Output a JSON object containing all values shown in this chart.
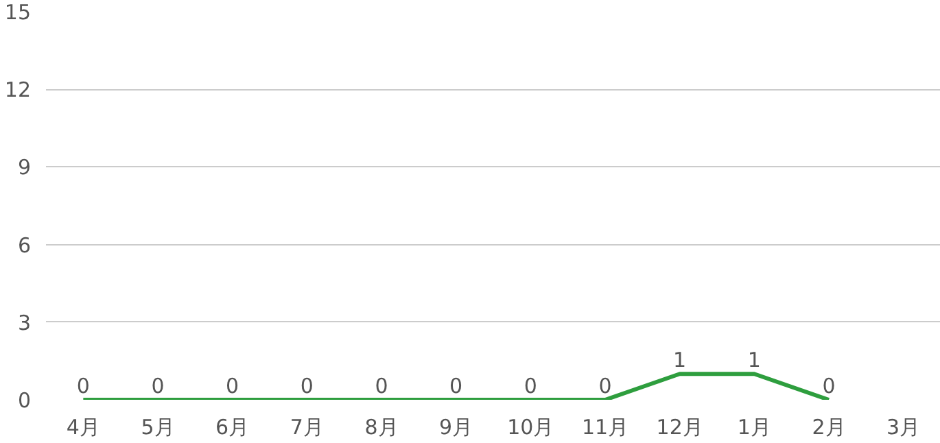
{
  "chart_data": {
    "type": "line",
    "categories": [
      "4月",
      "5月",
      "6月",
      "7月",
      "8月",
      "9月",
      "10月",
      "11月",
      "12月",
      "1月",
      "2月",
      "3月"
    ],
    "series": [
      {
        "color": "#2e9e3e",
        "values": [
          0,
          0,
          0,
          0,
          0,
          0,
          0,
          0,
          1,
          1,
          0,
          null
        ]
      }
    ],
    "ylim": [
      0,
      15
    ],
    "yticks": [
      0,
      3,
      6,
      9,
      12,
      15
    ],
    "grid": "y",
    "data_labels": true
  }
}
